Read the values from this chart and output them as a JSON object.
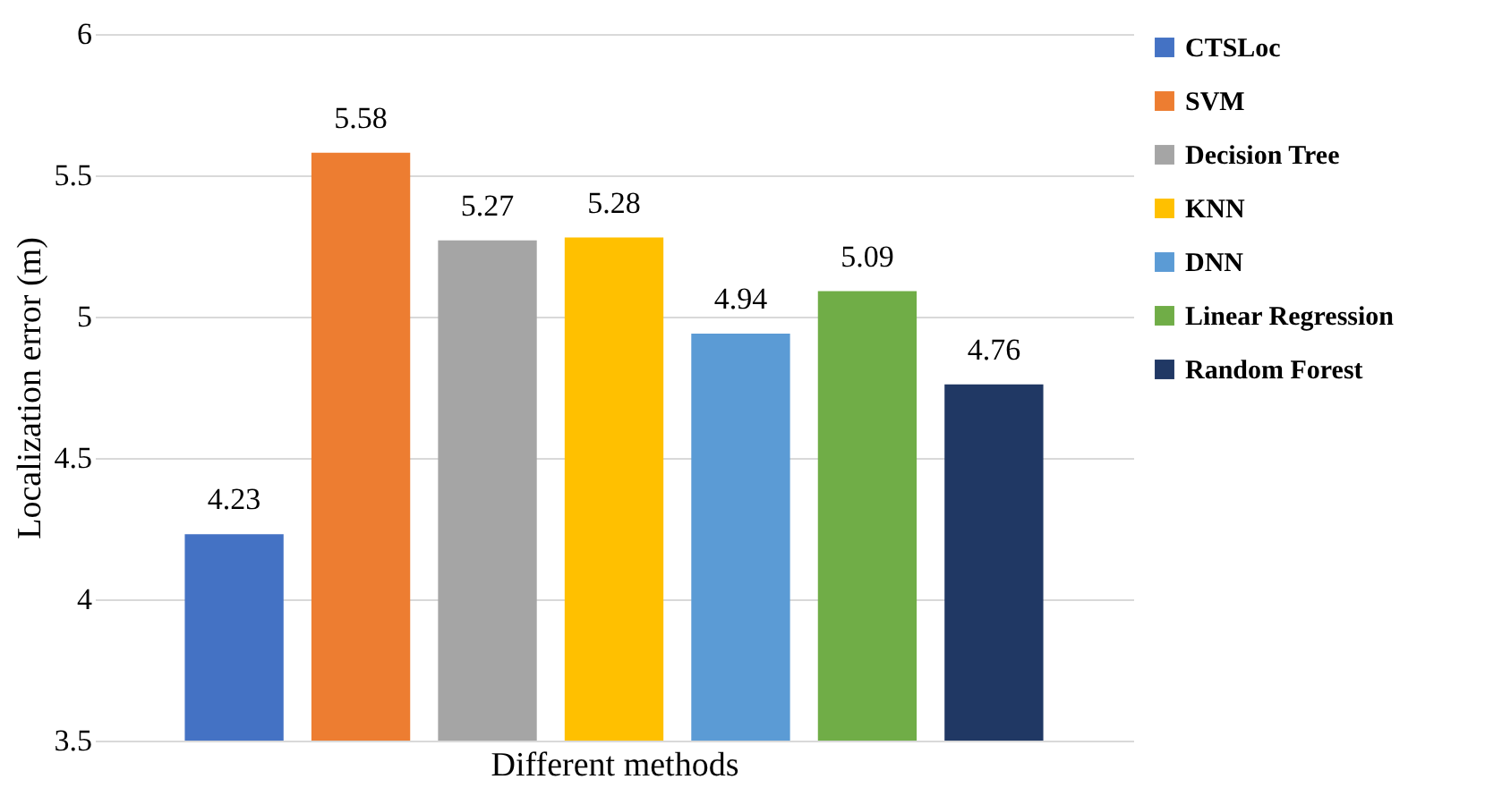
{
  "chart_data": {
    "type": "bar",
    "ylabel": "Localization error (m)",
    "xlabel": "Different methods",
    "categories": [
      null
    ],
    "series": [
      {
        "name": "CTSLoc",
        "color": "#4472c4",
        "values": [
          4.23
        ]
      },
      {
        "name": "SVM",
        "color": "#ed7d31",
        "values": [
          5.58
        ]
      },
      {
        "name": "Decision Tree",
        "color": "#a5a5a5",
        "values": [
          5.27
        ]
      },
      {
        "name": "KNN",
        "color": "#ffc000",
        "values": [
          5.28
        ]
      },
      {
        "name": "DNN",
        "color": "#5b9bd5",
        "values": [
          4.94
        ]
      },
      {
        "name": "Linear Regression",
        "color": "#70ad47",
        "values": [
          5.09
        ]
      },
      {
        "name": "Random Forest",
        "color": "#203864",
        "values": [
          4.76
        ]
      }
    ],
    "ylim": [
      3.5,
      6
    ],
    "yticks": [
      3.5,
      4,
      4.5,
      5,
      5.5,
      6
    ],
    "grid": "y",
    "legend": "right",
    "tick_labels": "y",
    "data_labels": true
  }
}
